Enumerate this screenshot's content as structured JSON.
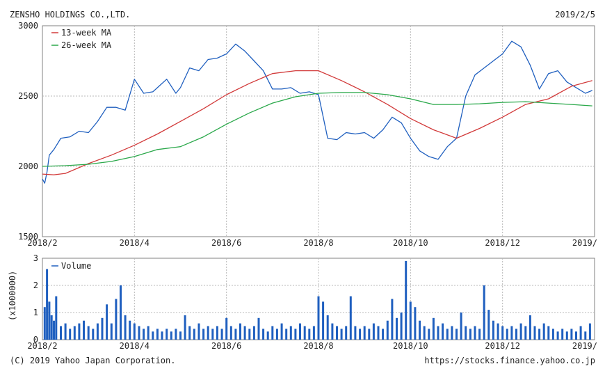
{
  "header": {
    "company": "ZENSHO HOLDINGS CO.,LTD.",
    "date": "2019/2/5"
  },
  "footer": {
    "copyright": "(C) 2019 Yahoo Japan Corporation.",
    "url": "https://stocks.finance.yahoo.co.jp"
  },
  "colors": {
    "price": "#1f5fbf",
    "ma13": "#d23a3a",
    "ma26": "#2aa84a",
    "volume": "#1f5fbf"
  },
  "chart_data": [
    {
      "type": "line",
      "title": "ZENSHO HOLDINGS CO.,LTD.",
      "ylim": [
        1500,
        3000
      ],
      "y_ticks": [
        1500,
        2000,
        2500,
        3000
      ],
      "x_tick_labels": [
        "2018/2",
        "2018/4",
        "2018/6",
        "2018/8",
        "2018/10",
        "2018/12",
        "2019/"
      ],
      "grid": true,
      "legend": [
        "13-week MA",
        "26-week MA"
      ],
      "legend_position": "top-left",
      "x_range": [
        0,
        12
      ],
      "series": [
        {
          "name": "",
          "x": [
            0,
            0.05,
            0.1,
            0.15,
            0.25,
            0.4,
            0.6,
            0.8,
            1.0,
            1.2,
            1.4,
            1.6,
            1.8,
            2.0,
            2.2,
            2.4,
            2.5,
            2.7,
            2.9,
            3.0,
            3.2,
            3.4,
            3.6,
            3.8,
            4.0,
            4.2,
            4.4,
            4.6,
            4.8,
            5.0,
            5.2,
            5.4,
            5.6,
            5.8,
            6.0,
            6.2,
            6.4,
            6.6,
            6.8,
            7.0,
            7.2,
            7.4,
            7.6,
            7.8,
            8.0,
            8.2,
            8.4,
            8.6,
            8.8,
            9.0,
            9.2,
            9.4,
            9.6,
            9.8,
            10.0,
            10.2,
            10.4,
            10.6,
            10.8,
            11.0,
            11.2,
            11.4,
            11.6,
            11.8,
            11.95
          ],
          "values": [
            1910,
            1880,
            1960,
            2080,
            2120,
            2200,
            2210,
            2250,
            2240,
            2320,
            2420,
            2420,
            2400,
            2620,
            2520,
            2530,
            2560,
            2620,
            2520,
            2560,
            2700,
            2680,
            2760,
            2770,
            2800,
            2870,
            2820,
            2750,
            2680,
            2550,
            2550,
            2560,
            2520,
            2530,
            2510,
            2200,
            2190,
            2240,
            2230,
            2240,
            2200,
            2260,
            2350,
            2310,
            2200,
            2110,
            2070,
            2050,
            2140,
            2200,
            2500,
            2650,
            2700,
            2750,
            2800,
            2890,
            2850,
            2720,
            2550,
            2660,
            2680,
            2600,
            2560,
            2520,
            2540
          ]
        },
        {
          "name": "13-week MA",
          "x": [
            0,
            0.25,
            0.5,
            1.0,
            1.5,
            2.0,
            2.5,
            3.0,
            3.5,
            4.0,
            4.5,
            5.0,
            5.5,
            6.0,
            6.5,
            7.0,
            7.5,
            8.0,
            8.5,
            9.0,
            9.5,
            10.0,
            10.5,
            11.0,
            11.5,
            11.95
          ],
          "values": [
            1945,
            1940,
            1950,
            2020,
            2080,
            2150,
            2230,
            2320,
            2410,
            2510,
            2590,
            2660,
            2680,
            2680,
            2610,
            2530,
            2440,
            2340,
            2260,
            2200,
            2270,
            2350,
            2440,
            2480,
            2570,
            2610
          ]
        },
        {
          "name": "26-week MA",
          "x": [
            0,
            0.5,
            1.0,
            1.5,
            2.0,
            2.5,
            3.0,
            3.5,
            4.0,
            4.5,
            5.0,
            5.5,
            6.0,
            6.5,
            7.0,
            7.5,
            8.0,
            8.5,
            9.0,
            9.5,
            10.0,
            10.5,
            11.0,
            11.5,
            11.95
          ],
          "values": [
            2000,
            2005,
            2015,
            2035,
            2070,
            2120,
            2140,
            2210,
            2300,
            2380,
            2450,
            2495,
            2520,
            2525,
            2525,
            2510,
            2480,
            2440,
            2440,
            2445,
            2455,
            2460,
            2450,
            2440,
            2430
          ]
        }
      ]
    },
    {
      "type": "bar",
      "title": "",
      "ylabel": "(x1000000)",
      "ylim": [
        0,
        3
      ],
      "y_ticks": [
        0,
        1,
        2,
        3
      ],
      "x_tick_labels": [
        "2018/2",
        "2018/4",
        "2018/6",
        "2018/8",
        "2018/10",
        "2018/12",
        "2019/"
      ],
      "grid": true,
      "legend": [
        "Volume"
      ],
      "legend_position": "top-left",
      "x_range": [
        0,
        12
      ],
      "series": [
        {
          "name": "Volume",
          "x": [
            0.05,
            0.1,
            0.15,
            0.2,
            0.25,
            0.3,
            0.4,
            0.5,
            0.6,
            0.7,
            0.8,
            0.9,
            1.0,
            1.1,
            1.2,
            1.3,
            1.4,
            1.5,
            1.6,
            1.7,
            1.8,
            1.9,
            2.0,
            2.1,
            2.2,
            2.3,
            2.4,
            2.5,
            2.6,
            2.7,
            2.8,
            2.9,
            3.0,
            3.1,
            3.2,
            3.3,
            3.4,
            3.5,
            3.6,
            3.7,
            3.8,
            3.9,
            4.0,
            4.1,
            4.2,
            4.3,
            4.4,
            4.5,
            4.6,
            4.7,
            4.8,
            4.9,
            5.0,
            5.1,
            5.2,
            5.3,
            5.4,
            5.5,
            5.6,
            5.7,
            5.8,
            5.9,
            6.0,
            6.1,
            6.2,
            6.3,
            6.4,
            6.5,
            6.6,
            6.7,
            6.8,
            6.9,
            7.0,
            7.1,
            7.2,
            7.3,
            7.4,
            7.5,
            7.6,
            7.7,
            7.8,
            7.9,
            8.0,
            8.1,
            8.2,
            8.3,
            8.4,
            8.5,
            8.6,
            8.7,
            8.8,
            8.9,
            9.0,
            9.1,
            9.2,
            9.3,
            9.4,
            9.5,
            9.6,
            9.7,
            9.8,
            9.9,
            10.0,
            10.1,
            10.2,
            10.3,
            10.4,
            10.5,
            10.6,
            10.7,
            10.8,
            10.9,
            11.0,
            11.1,
            11.2,
            11.3,
            11.4,
            11.5,
            11.6,
            11.7,
            11.8,
            11.9
          ],
          "values": [
            1.2,
            2.6,
            1.4,
            0.9,
            0.7,
            1.6,
            0.5,
            0.6,
            0.4,
            0.5,
            0.6,
            0.7,
            0.5,
            0.4,
            0.6,
            0.8,
            1.3,
            0.6,
            1.5,
            2.0,
            0.9,
            0.7,
            0.6,
            0.5,
            0.4,
            0.5,
            0.3,
            0.4,
            0.3,
            0.4,
            0.3,
            0.4,
            0.3,
            0.9,
            0.5,
            0.4,
            0.6,
            0.4,
            0.5,
            0.4,
            0.5,
            0.4,
            0.8,
            0.5,
            0.4,
            0.6,
            0.5,
            0.4,
            0.5,
            0.8,
            0.4,
            0.3,
            0.5,
            0.4,
            0.6,
            0.4,
            0.5,
            0.4,
            0.6,
            0.5,
            0.4,
            0.5,
            1.6,
            1.4,
            0.9,
            0.6,
            0.5,
            0.4,
            0.5,
            1.6,
            0.5,
            0.4,
            0.5,
            0.4,
            0.6,
            0.5,
            0.4,
            0.7,
            1.5,
            0.8,
            1.0,
            2.9,
            1.4,
            1.2,
            0.7,
            0.5,
            0.4,
            0.8,
            0.5,
            0.6,
            0.4,
            0.5,
            0.4,
            1.0,
            0.5,
            0.4,
            0.5,
            0.4,
            2.0,
            1.1,
            0.7,
            0.6,
            0.5,
            0.4,
            0.5,
            0.4,
            0.6,
            0.5,
            0.9,
            0.5,
            0.4,
            0.6,
            0.5,
            0.4,
            0.3,
            0.4,
            0.3,
            0.4,
            0.3,
            0.5,
            0.3,
            0.6
          ]
        }
      ]
    }
  ]
}
